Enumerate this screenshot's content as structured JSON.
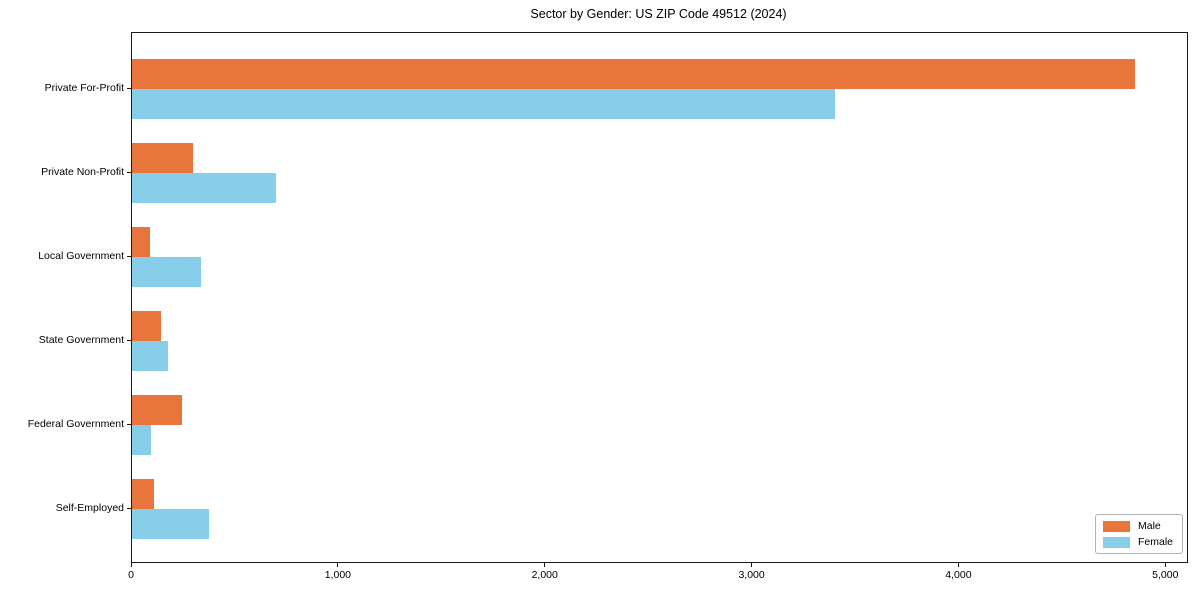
{
  "title": "Sector by Gender: US ZIP Code 49512 (2024)",
  "chart_data": {
    "type": "bar",
    "orientation": "horizontal",
    "title": "Sector by Gender: US ZIP Code 49512 (2024)",
    "categories": [
      "Private For-Profit",
      "Private Non-Profit",
      "Local Government",
      "State Government",
      "Federal Government",
      "Self-Employed"
    ],
    "series": [
      {
        "name": "Male",
        "color": "#E8763C",
        "values": [
          4850,
          295,
          85,
          140,
          240,
          105
        ]
      },
      {
        "name": "Female",
        "color": "#87CEEB",
        "values": [
          3400,
          695,
          335,
          175,
          90,
          370
        ]
      }
    ],
    "xlim": [
      0,
      5100
    ],
    "x_ticks": [
      0,
      1000,
      2000,
      3000,
      4000,
      5000
    ],
    "x_tick_labels": [
      "0",
      "1,000",
      "2,000",
      "3,000",
      "4,000",
      "5,000"
    ],
    "ylabel": "",
    "xlabel": "",
    "grid": false,
    "legend_position": "lower right",
    "bar_order_note": "Male bar drawn above Female bar in each category group; categories listed top to bottom"
  }
}
